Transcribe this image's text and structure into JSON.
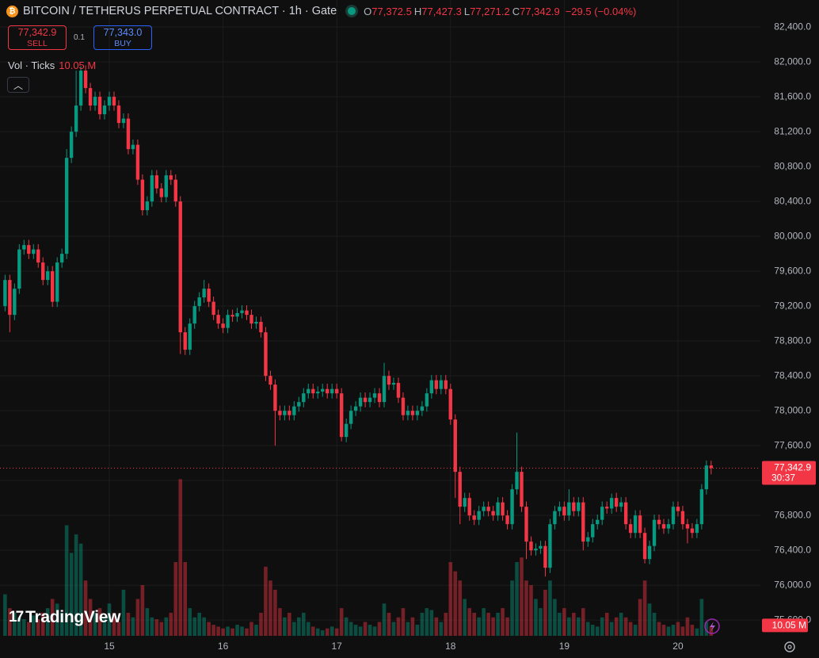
{
  "chart_data": {
    "type": "candlestick",
    "title": "BITCOIN / TETHERUS PERPETUAL CONTRACT · 1h · Gate",
    "ohlc_legend": [
      {
        "label": "O",
        "value": "77,372.5"
      },
      {
        "label": "H",
        "value": "77,427.3"
      },
      {
        "label": "L",
        "value": "77,271.2"
      },
      {
        "label": "C",
        "value": "77,342.9"
      }
    ],
    "change_label": "−29.5 (−0.04%)",
    "sell": {
      "price": "77,342.9",
      "label": "SELL"
    },
    "buy": {
      "price": "77,343.0",
      "label": "BUY"
    },
    "spread": "0.1",
    "volume_title": "Vol · Ticks",
    "volume_value_label": "10.05 M",
    "last_price_label": "77,342.9",
    "countdown": "30:37",
    "watermark": "TradingView",
    "categories": [
      null,
      null,
      null,
      null,
      null,
      null,
      null,
      null,
      null,
      null,
      null,
      null,
      null,
      null,
      null,
      null,
      null,
      null,
      null,
      null,
      null,
      null,
      "15",
      null,
      null,
      null,
      null,
      null,
      null,
      null,
      null,
      null,
      null,
      null,
      null,
      null,
      null,
      null,
      null,
      null,
      null,
      null,
      null,
      null,
      null,
      null,
      "16",
      null,
      null,
      null,
      null,
      null,
      null,
      null,
      null,
      null,
      null,
      null,
      null,
      null,
      null,
      null,
      null,
      null,
      null,
      null,
      null,
      null,
      null,
      null,
      "17",
      null,
      null,
      null,
      null,
      null,
      null,
      null,
      null,
      null,
      null,
      null,
      null,
      null,
      null,
      null,
      null,
      null,
      null,
      null,
      null,
      null,
      null,
      null,
      "18",
      null,
      null,
      null,
      null,
      null,
      null,
      null,
      null,
      null,
      null,
      null,
      null,
      null,
      null,
      null,
      null,
      null,
      null,
      null,
      null,
      null,
      null,
      null,
      "19",
      null,
      null,
      null,
      null,
      null,
      null,
      null,
      null,
      null,
      null,
      null,
      null,
      null,
      null,
      null,
      null,
      null,
      null,
      null,
      null,
      null,
      null,
      null,
      "20",
      null,
      null,
      null,
      null,
      null,
      null,
      null
    ],
    "open": [
      79200,
      79500,
      79100,
      79400,
      79850,
      79900,
      79800,
      79850,
      79700,
      79500,
      79600,
      79250,
      79700,
      79800,
      80900,
      81200,
      81500,
      81900,
      81700,
      81500,
      81600,
      81400,
      81500,
      81600,
      81500,
      81300,
      81350,
      81000,
      81050,
      80650,
      80300,
      80400,
      80700,
      80550,
      80450,
      80700,
      80650,
      80400,
      78900,
      78700,
      79000,
      79200,
      79300,
      79400,
      79250,
      79100,
      79000,
      78950,
      79100,
      79080,
      79120,
      79150,
      79100,
      79000,
      79020,
      78900,
      78400,
      78300,
      78000,
      77950,
      78000,
      77950,
      78050,
      78100,
      78200,
      78250,
      78200,
      78220,
      78250,
      78200,
      78250,
      78200,
      77700,
      77850,
      78000,
      78050,
      78150,
      78100,
      78150,
      78200,
      78100,
      78400,
      78300,
      78320,
      78150,
      77950,
      78000,
      77950,
      78000,
      78050,
      78200,
      78350,
      78250,
      78350,
      78250,
      77900,
      77300,
      76900,
      77000,
      76800,
      76750,
      76850,
      76900,
      76850,
      76800,
      76950,
      76800,
      76700,
      77100,
      77300,
      76900,
      76500,
      76400,
      76420,
      76450,
      76200,
      76700,
      76850,
      76900,
      76800,
      76950,
      76850,
      76950,
      76500,
      76550,
      76700,
      76750,
      76900,
      76880,
      77000,
      76900,
      76950,
      76700,
      76600,
      76800,
      76600,
      76300,
      76450,
      76750,
      76700,
      76650,
      76700,
      76900,
      76850,
      76700,
      76650,
      76600,
      76700,
      77100,
      77372.5
    ],
    "high": [
      79560,
      79560,
      79460,
      79910,
      79960,
      79960,
      79910,
      79910,
      79760,
      79660,
      79660,
      79760,
      79860,
      81000,
      81260,
      81900,
      81950,
      81960,
      81760,
      81660,
      81660,
      81560,
      81660,
      81660,
      81560,
      81410,
      81410,
      81110,
      81110,
      80710,
      80460,
      80760,
      80760,
      80610,
      80760,
      80760,
      80710,
      80460,
      78960,
      79060,
      79260,
      79360,
      79500,
      79460,
      79310,
      79160,
      79060,
      79160,
      79160,
      79180,
      79210,
      79210,
      79160,
      79080,
      79080,
      78960,
      78460,
      78360,
      78060,
      78060,
      78060,
      78110,
      78160,
      78260,
      78310,
      78310,
      78280,
      78310,
      78310,
      78310,
      78310,
      78260,
      77910,
      78060,
      78110,
      78210,
      78210,
      78210,
      78260,
      78260,
      78550,
      78460,
      78380,
      78380,
      78210,
      78060,
      78060,
      78060,
      78110,
      78260,
      78410,
      78410,
      78410,
      78410,
      78310,
      77960,
      77360,
      77060,
      77060,
      76860,
      76910,
      76960,
      76960,
      76910,
      77010,
      77010,
      76860,
      77160,
      77750,
      77360,
      76960,
      76560,
      76480,
      76510,
      76510,
      76760,
      76910,
      76960,
      76960,
      77100,
      77010,
      77010,
      77010,
      76610,
      76760,
      76810,
      76960,
      76960,
      77050,
      77060,
      77010,
      77010,
      76760,
      76860,
      76860,
      76660,
      76510,
      76810,
      76810,
      76760,
      76760,
      76960,
      76960,
      76910,
      76760,
      76710,
      76760,
      77160,
      77430,
      77427.3
    ],
    "low": [
      79140,
      78900,
      79040,
      79340,
      79790,
      79740,
      79740,
      79640,
      79440,
      79440,
      79190,
      79190,
      79640,
      79740,
      80840,
      81140,
      81440,
      81640,
      81440,
      81440,
      81340,
      81340,
      81440,
      81440,
      81240,
      81240,
      80940,
      80940,
      80590,
      80240,
      80240,
      80340,
      80490,
      80390,
      80390,
      80590,
      80340,
      78650,
      78640,
      78640,
      78940,
      79140,
      79240,
      79190,
      79040,
      78940,
      78890,
      78890,
      79020,
      79020,
      79060,
      79040,
      78940,
      78940,
      78840,
      78340,
      78240,
      77600,
      77890,
      77890,
      77890,
      77890,
      77990,
      78040,
      78140,
      78140,
      78140,
      78160,
      78140,
      78140,
      78140,
      77650,
      77640,
      77790,
      77940,
      77990,
      78040,
      78040,
      78090,
      78040,
      78040,
      78240,
      78240,
      78090,
      77890,
      77890,
      77890,
      77890,
      77940,
      77990,
      78140,
      78190,
      78190,
      78190,
      77840,
      77000,
      76700,
      76840,
      76740,
      76690,
      76690,
      76790,
      76790,
      76740,
      76740,
      76740,
      76640,
      76640,
      77040,
      76840,
      76300,
      76340,
      76340,
      76360,
      76100,
      76140,
      76640,
      76790,
      76740,
      76740,
      76790,
      76790,
      76400,
      76440,
      76490,
      76640,
      76690,
      76820,
      76820,
      76840,
      76840,
      76640,
      76540,
      76540,
      76540,
      76250,
      76240,
      76390,
      76640,
      76590,
      76590,
      76640,
      76790,
      76640,
      76480,
      76540,
      76540,
      76640,
      77040,
      77271.2
    ],
    "close": [
      79500,
      79100,
      79400,
      79850,
      79900,
      79800,
      79850,
      79700,
      79500,
      79600,
      79250,
      79700,
      79800,
      80900,
      81200,
      81500,
      81900,
      81700,
      81500,
      81600,
      81400,
      81500,
      81600,
      81500,
      81300,
      81350,
      81000,
      81050,
      80650,
      80300,
      80400,
      80700,
      80550,
      80450,
      80700,
      80650,
      80400,
      78900,
      78700,
      79000,
      79200,
      79300,
      79400,
      79250,
      79100,
      79000,
      78950,
      79100,
      79080,
      79120,
      79150,
      79100,
      79000,
      79020,
      78900,
      78400,
      78300,
      78000,
      77950,
      78000,
      77950,
      78050,
      78100,
      78200,
      78250,
      78200,
      78220,
      78250,
      78200,
      78250,
      78200,
      77700,
      77850,
      78000,
      78050,
      78150,
      78100,
      78150,
      78200,
      78100,
      78400,
      78300,
      78320,
      78150,
      77950,
      78000,
      77950,
      78000,
      78050,
      78200,
      78350,
      78250,
      78350,
      78250,
      77900,
      77300,
      76900,
      77000,
      76800,
      76750,
      76850,
      76900,
      76850,
      76800,
      76950,
      76800,
      76700,
      77100,
      77300,
      76900,
      76500,
      76400,
      76420,
      76450,
      76200,
      76700,
      76850,
      76900,
      76800,
      76950,
      76850,
      76950,
      76500,
      76550,
      76700,
      76750,
      76900,
      76880,
      77000,
      76900,
      76950,
      76700,
      76600,
      76800,
      76600,
      76300,
      76450,
      76750,
      76700,
      76650,
      76700,
      76900,
      76850,
      76700,
      76650,
      76600,
      76700,
      77100,
      77372.5,
      77342.9
    ],
    "volume": [
      45,
      30,
      25,
      20,
      18,
      15,
      22,
      18,
      25,
      30,
      40,
      35,
      25,
      120,
      90,
      110,
      100,
      60,
      40,
      25,
      30,
      20,
      35,
      25,
      15,
      50,
      25,
      20,
      40,
      55,
      30,
      20,
      18,
      15,
      20,
      25,
      80,
      170,
      80,
      30,
      20,
      25,
      20,
      15,
      12,
      10,
      8,
      10,
      8,
      12,
      10,
      8,
      15,
      12,
      25,
      75,
      60,
      50,
      30,
      20,
      25,
      15,
      20,
      25,
      15,
      10,
      8,
      6,
      8,
      10,
      8,
      30,
      20,
      15,
      12,
      10,
      15,
      12,
      10,
      15,
      35,
      25,
      15,
      20,
      30,
      15,
      20,
      12,
      25,
      30,
      28,
      20,
      15,
      25,
      80,
      70,
      60,
      40,
      30,
      25,
      20,
      30,
      25,
      20,
      25,
      30,
      20,
      60,
      80,
      85,
      60,
      55,
      40,
      30,
      50,
      60,
      40,
      25,
      30,
      20,
      25,
      20,
      30,
      15,
      12,
      10,
      20,
      25,
      15,
      20,
      25,
      20,
      15,
      12,
      40,
      60,
      35,
      25,
      15,
      12,
      10,
      12,
      15,
      10,
      20,
      12,
      8,
      40,
      15,
      10.05
    ],
    "up_color": "#089981",
    "down_color": "#f23645",
    "ylim": [
      75420,
      82710
    ],
    "yticks": [
      {
        "value": 75600,
        "label": "75,600.0"
      },
      {
        "value": 76000,
        "label": "76,000.0"
      },
      {
        "value": 76400,
        "label": "76,400.0"
      },
      {
        "value": 76800,
        "label": "76,800.0"
      },
      {
        "value": 77200,
        "label": "77,200.0"
      },
      {
        "value": 77600,
        "label": "77,600.0"
      },
      {
        "value": 78000,
        "label": "78,000.0"
      },
      {
        "value": 78400,
        "label": "78,400.0"
      },
      {
        "value": 78800,
        "label": "78,800.0"
      },
      {
        "value": 79200,
        "label": "79,200.0"
      },
      {
        "value": 79600,
        "label": "79,600.0"
      },
      {
        "value": 80000,
        "label": "80,000.0"
      },
      {
        "value": 80400,
        "label": "80,400.0"
      },
      {
        "value": 80800,
        "label": "80,800.0"
      },
      {
        "value": 81200,
        "label": "81,200.0"
      },
      {
        "value": 81600,
        "label": "81,600.0"
      },
      {
        "value": 82000,
        "label": "82,000.0"
      },
      {
        "value": 82400,
        "label": "82,400.0"
      }
    ],
    "volume_ylim": [
      0,
      690
    ],
    "grid": true
  }
}
